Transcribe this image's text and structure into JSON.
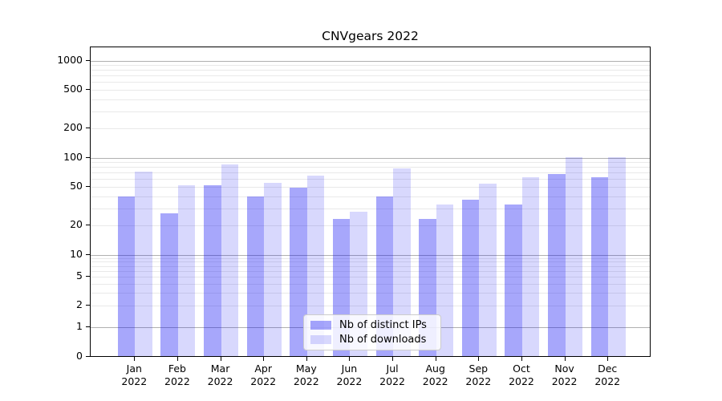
{
  "chart_title": "CNVgears 2022",
  "legend": {
    "items": [
      {
        "label": "Nb of distinct IPs",
        "color": "#a8a8f6"
      },
      {
        "label": "Nb of downloads",
        "color": "#d9d9fb"
      }
    ],
    "position": "lower center"
  },
  "y_axis": {
    "tick_values": [
      0,
      1,
      2,
      5,
      10,
      20,
      50,
      100,
      200,
      500,
      1000
    ],
    "tick_labels": [
      "0",
      "1",
      "2",
      "5",
      "10",
      "20",
      "50",
      "100",
      "200",
      "500",
      "1000"
    ],
    "scale": "log-like with zero baseline",
    "major_grid_values": [
      1,
      10,
      100,
      1000
    ],
    "minor_grid_values": [
      2,
      3,
      4,
      5,
      6,
      7,
      8,
      9,
      20,
      30,
      40,
      50,
      60,
      70,
      80,
      90,
      200,
      300,
      400,
      500,
      600,
      700,
      800,
      900
    ]
  },
  "x_axis": {
    "months": [
      "Jan",
      "Feb",
      "Mar",
      "Apr",
      "May",
      "Jun",
      "Jul",
      "Aug",
      "Sep",
      "Oct",
      "Nov",
      "Dec"
    ],
    "year_label": "2022"
  },
  "chart_data": {
    "type": "bar",
    "title": "CNVgears 2022",
    "categories": [
      "Jan 2022",
      "Feb 2022",
      "Mar 2022",
      "Apr 2022",
      "May 2022",
      "Jun 2022",
      "Jul 2022",
      "Aug 2022",
      "Sep 2022",
      "Oct 2022",
      "Nov 2022",
      "Dec 2022"
    ],
    "series": [
      {
        "name": "Nb of distinct IPs",
        "color": "#a8a8f6",
        "values": [
          39,
          26,
          51,
          39,
          48,
          23,
          39,
          23,
          36,
          32,
          67,
          61
        ]
      },
      {
        "name": "Nb of downloads",
        "color": "#d9d9fb",
        "values": [
          70,
          51,
          84,
          54,
          64,
          27,
          76,
          32,
          53,
          61,
          100,
          100
        ]
      }
    ],
    "xlabel": "",
    "ylabel": "",
    "yscale": "log",
    "y_ticks": [
      0,
      1,
      2,
      5,
      10,
      20,
      50,
      100,
      200,
      500,
      1000
    ],
    "ylim": [
      0,
      1250
    ],
    "grid": true,
    "legend_position": "lower center"
  }
}
